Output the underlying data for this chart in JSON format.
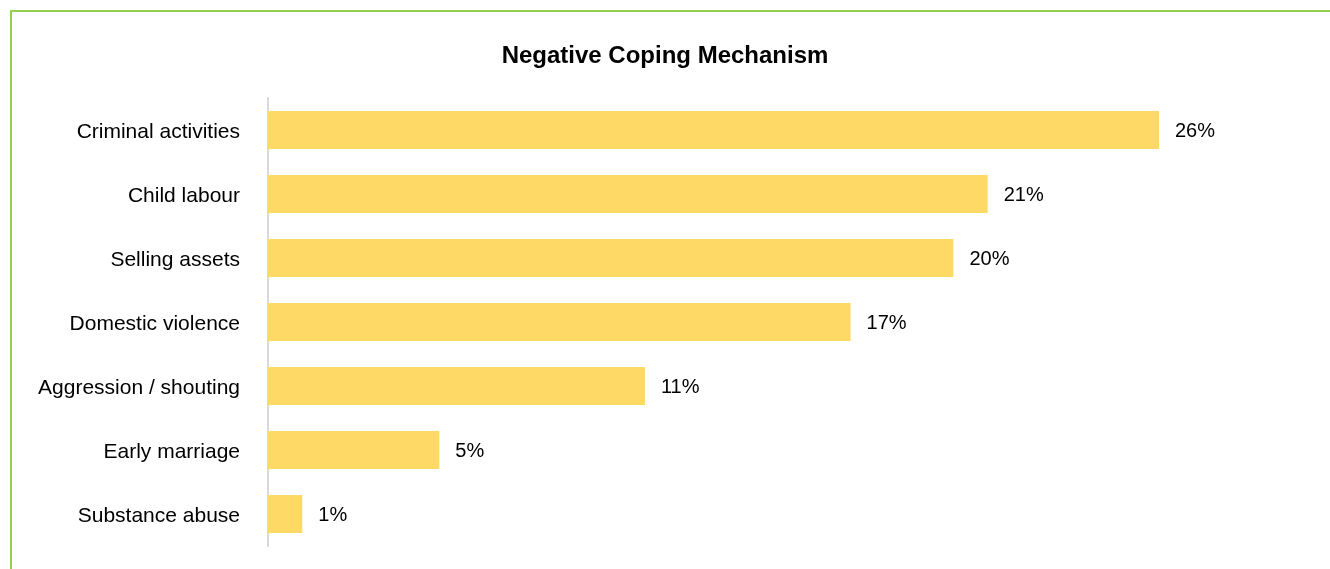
{
  "chart_data": {
    "type": "bar",
    "orientation": "horizontal",
    "title": "Negative Coping Mechanism",
    "categories": [
      "Criminal activities",
      "Child labour",
      "Selling assets",
      "Domestic violence",
      "Aggression / shouting",
      "Early marriage",
      "Substance abuse"
    ],
    "values": [
      26,
      21,
      20,
      17,
      11,
      5,
      1
    ],
    "value_labels": [
      "26%",
      "21%",
      "20%",
      "17%",
      "11%",
      "5%",
      "1%"
    ],
    "color": "#ffd966"
  }
}
